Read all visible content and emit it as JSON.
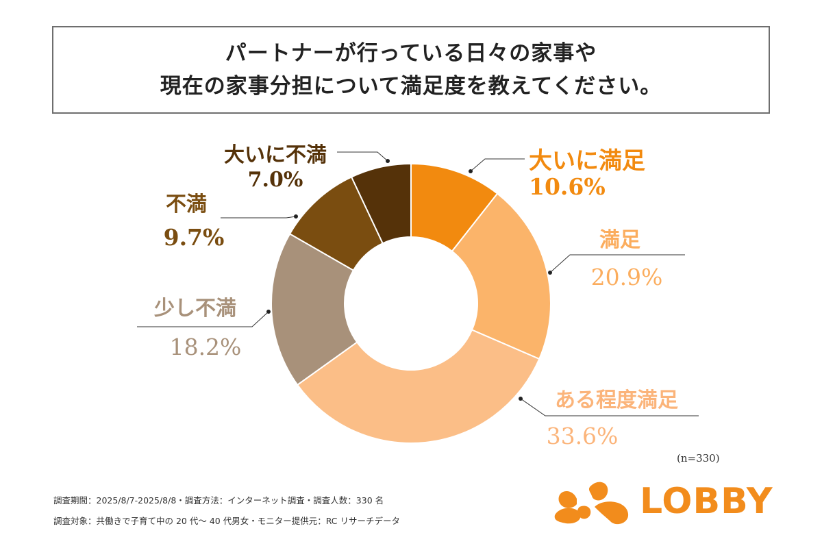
{
  "title": {
    "line1": "パートナーが行っている日々の家事や",
    "line2": "現在の家事分担について満足度を教えてください。"
  },
  "chart_data": {
    "type": "pie",
    "title": "パートナーが行っている日々の家事や現在の家事分担について満足度を教えてください。",
    "donut": true,
    "categories": [
      "大いに満足",
      "満足",
      "ある程度満足",
      "少し不満",
      "不満",
      "大いに不満"
    ],
    "values": [
      10.6,
      20.9,
      33.6,
      18.2,
      9.7,
      7.0
    ],
    "value_labels": [
      "10.6%",
      "20.9%",
      "33.6%",
      "18.2%",
      "9.7%",
      "7.0%"
    ],
    "colors": [
      "#f28a0f",
      "#fbb46a",
      "#fbbe87",
      "#a8917a",
      "#7a4d10",
      "#553209"
    ],
    "label_colors": [
      "#f28a0f",
      "#fbad5e",
      "#fbb47a",
      "#a8917a",
      "#7a4d10",
      "#553209"
    ],
    "sample": "(n=330)"
  },
  "footer": {
    "survey_line1": "調査期間：2025/8/7-2025/8/8・調査方法：インターネット調査・調査人数：330 名",
    "survey_line2": "調査対象：共働きで子育て中の 20 代～ 40 代男女・モニター提供元：RC リサーチデータ"
  },
  "logo": {
    "text": "LOBBY",
    "color": "#f28c1c"
  }
}
